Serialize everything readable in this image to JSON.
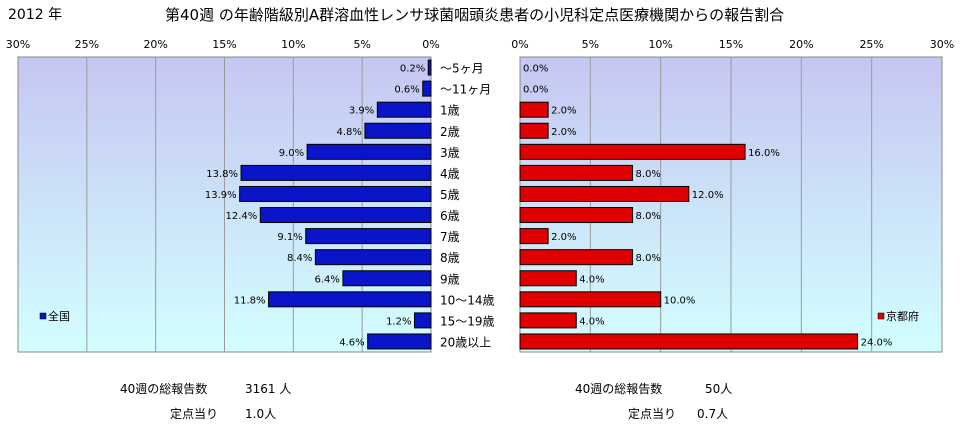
{
  "header": {
    "year": "2012 年",
    "title": "第40週 の年齢階級別A群溶血性レンサ球菌咽頭炎患者の小児科定点医療機関からの報告割合"
  },
  "colors": {
    "left_bar": "#0a14c8",
    "right_bar": "#e00000",
    "plot_top": "#c6c6f2",
    "plot_bottom": "#d2ffff"
  },
  "chart_data": [
    {
      "type": "bar",
      "orientation": "horizontal",
      "direction": "right-to-left",
      "categories": [
        "～5ヶ月",
        "～11ヶ月",
        "1歳",
        "2歳",
        "3歳",
        "4歳",
        "5歳",
        "6歳",
        "7歳",
        "8歳",
        "9歳",
        "10～14歳",
        "15～19歳",
        "20歳以上"
      ],
      "series": [
        {
          "name": "全国",
          "values": [
            0.2,
            0.6,
            3.9,
            4.8,
            9.0,
            13.8,
            13.9,
            12.4,
            9.1,
            8.4,
            6.4,
            11.8,
            1.2,
            4.6
          ],
          "labels": [
            "0.2%",
            "0.6%",
            "3.9%",
            "4.8%",
            "9.0%",
            "13.8%",
            "13.9%",
            "12.4%",
            "9.1%",
            "8.4%",
            "6.4%",
            "11.8%",
            "1.2%",
            "4.6%"
          ]
        }
      ],
      "xlim": [
        0,
        30
      ],
      "ticks": [
        "30%",
        "25%",
        "20%",
        "15%",
        "10%",
        "5%",
        "0%"
      ],
      "legend_position": "bottom-left",
      "grid": true
    },
    {
      "type": "bar",
      "orientation": "horizontal",
      "direction": "left-to-right",
      "categories": [
        "～5ヶ月",
        "～11ヶ月",
        "1歳",
        "2歳",
        "3歳",
        "4歳",
        "5歳",
        "6歳",
        "7歳",
        "8歳",
        "9歳",
        "10～14歳",
        "15～19歳",
        "20歳以上"
      ],
      "series": [
        {
          "name": "京都府",
          "values": [
            0.0,
            0.0,
            2.0,
            2.0,
            16.0,
            8.0,
            12.0,
            8.0,
            2.0,
            8.0,
            4.0,
            10.0,
            4.0,
            24.0
          ],
          "labels": [
            "0.0%",
            "0.0%",
            "2.0%",
            "2.0%",
            "16.0%",
            "8.0%",
            "12.0%",
            "8.0%",
            "2.0%",
            "8.0%",
            "4.0%",
            "10.0%",
            "4.0%",
            "24.0%"
          ]
        }
      ],
      "xlim": [
        0,
        30
      ],
      "ticks": [
        "0%",
        "5%",
        "10%",
        "15%",
        "20%",
        "25%",
        "30%"
      ],
      "legend_position": "bottom-right",
      "grid": true
    }
  ],
  "stats": {
    "left": {
      "total_label": "40週の総報告数",
      "total_value": "3161 人",
      "per_label": "定点当り",
      "per_value": "1.0人"
    },
    "right": {
      "total_label": "40週の総報告数",
      "total_value": "50人",
      "per_label": "定点当り",
      "per_value": "0.7人"
    }
  }
}
